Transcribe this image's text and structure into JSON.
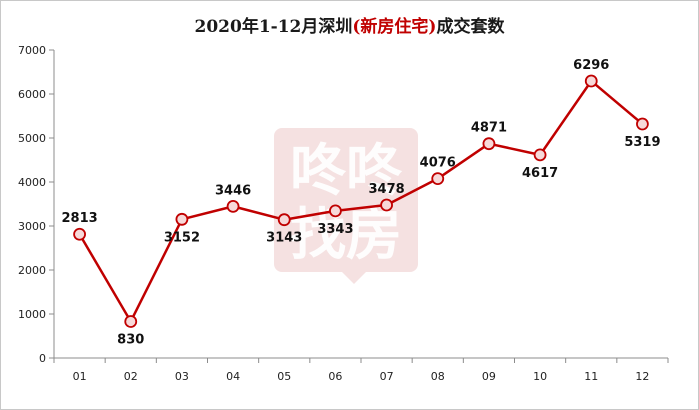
{
  "title": {
    "prefix": "2020年1-12月深圳",
    "highlight": "(新房住宅)",
    "suffix": "成交套数"
  },
  "watermark": {
    "line1": "咚咚",
    "line2": "找房"
  },
  "chart_data": {
    "type": "line",
    "title": "2020年1-12月深圳(新房住宅)成交套数",
    "categories": [
      "01",
      "02",
      "03",
      "04",
      "05",
      "06",
      "07",
      "08",
      "09",
      "10",
      "11",
      "12"
    ],
    "values": [
      2813,
      830,
      3152,
      3446,
      3143,
      3343,
      3478,
      4076,
      4871,
      4617,
      6296,
      5319
    ],
    "ylim": [
      0,
      7000
    ],
    "yticks": [
      0,
      1000,
      2000,
      3000,
      4000,
      5000,
      6000,
      7000
    ],
    "xlabel": "",
    "ylabel": "",
    "grid": false,
    "legend": "none",
    "line_color": "#c00000",
    "marker_fill": "#f7d9d9"
  }
}
